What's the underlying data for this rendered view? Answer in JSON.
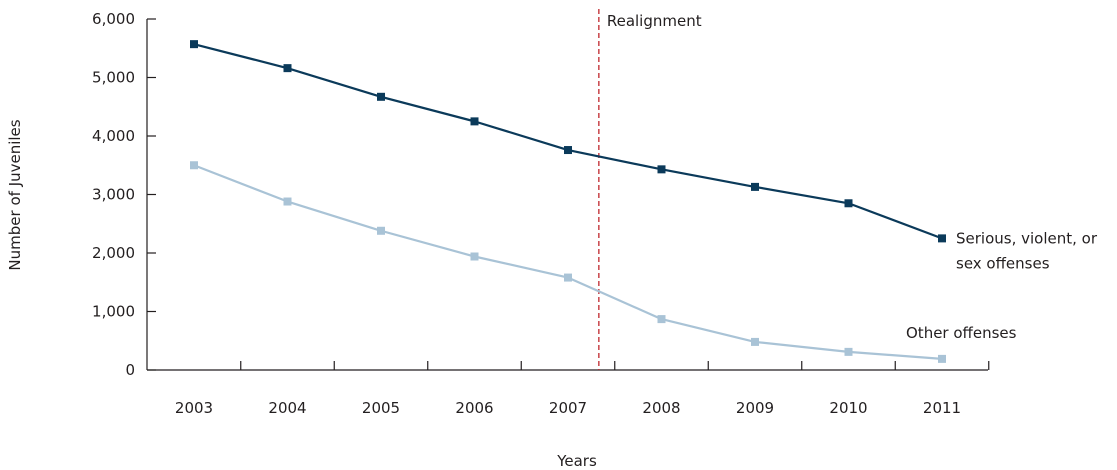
{
  "chart_data": {
    "type": "line",
    "title": "",
    "xlabel": "Years",
    "ylabel": "Number of Juveniles",
    "categories": [
      "2003",
      "2004",
      "2005",
      "2006",
      "2007",
      "2008",
      "2009",
      "2010",
      "2011"
    ],
    "ylim": [
      0,
      6000
    ],
    "yticks": [
      0,
      1000,
      2000,
      3000,
      4000,
      5000,
      6000
    ],
    "ytick_labels": [
      "0",
      "1,000",
      "2,000",
      "3,000",
      "4,000",
      "5,000",
      "6,000"
    ],
    "grid": false,
    "legend": "none (series labeled directly at line ends)",
    "series": [
      {
        "name": "Serious, violent, or sex offenses",
        "label_lines": [
          "Serious, violent, or",
          "sex offenses"
        ],
        "color": "#0b3a5a",
        "values": [
          5570,
          5160,
          4670,
          4250,
          3760,
          3430,
          3130,
          2850,
          2250
        ]
      },
      {
        "name": "Other offenses",
        "label_lines": [
          "Other offenses"
        ],
        "color": "#a9c3d6",
        "values": [
          3500,
          2880,
          2380,
          1940,
          1580,
          870,
          480,
          310,
          190
        ]
      }
    ],
    "annotations": [
      {
        "text": "Realignment",
        "x_position_between": [
          "2007",
          "2008"
        ],
        "style": "dashed vertical line",
        "color": "#c0272d"
      }
    ]
  }
}
